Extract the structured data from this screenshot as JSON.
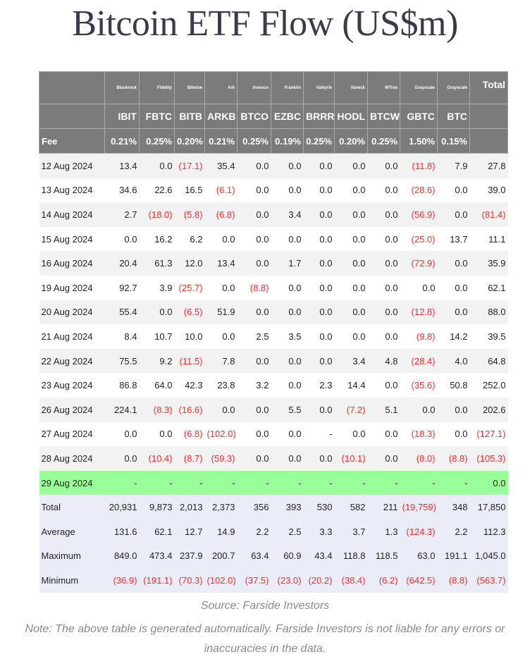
{
  "title": "Bitcoin ETF Flow (US$m)",
  "issuers": [
    "Blackrock",
    "Fidelity",
    "Bitwise",
    "Ark",
    "Invesco",
    "Franklin",
    "Valkyrie",
    "Vaneck",
    "WTree",
    "Grayscale",
    "Grayscale"
  ],
  "total_label": "Total",
  "tickers": [
    "IBIT",
    "FBTC",
    "BITB",
    "ARKB",
    "BTCO",
    "EZBC",
    "BRRR",
    "HODL",
    "BTCW",
    "GBTC",
    "BTC"
  ],
  "fee_label": "Fee",
  "fees": [
    "0.21%",
    "0.25%",
    "0.20%",
    "0.21%",
    "0.25%",
    "0.19%",
    "0.25%",
    "0.20%",
    "0.25%",
    "1.50%",
    "0.15%"
  ],
  "rows": [
    {
      "date": "12 Aug 2024",
      "values": [
        "13.4",
        "0.0",
        "(17.1)",
        "35.4",
        "0.0",
        "0.0",
        "0.0",
        "0.0",
        "0.0",
        "(11.8)",
        "7.9",
        "27.8"
      ]
    },
    {
      "date": "13 Aug 2024",
      "values": [
        "34.6",
        "22.6",
        "16.5",
        "(6.1)",
        "0.0",
        "0.0",
        "0.0",
        "0.0",
        "0.0",
        "(28.6)",
        "0.0",
        "39.0"
      ]
    },
    {
      "date": "14 Aug 2024",
      "values": [
        "2.7",
        "(18.0)",
        "(5.8)",
        "(6.8)",
        "0.0",
        "3.4",
        "0.0",
        "0.0",
        "0.0",
        "(56.9)",
        "0.0",
        "(81.4)"
      ]
    },
    {
      "date": "15 Aug 2024",
      "values": [
        "0.0",
        "16.2",
        "6.2",
        "0.0",
        "0.0",
        "0.0",
        "0.0",
        "0.0",
        "0.0",
        "(25.0)",
        "13.7",
        "11.1"
      ]
    },
    {
      "date": "16 Aug 2024",
      "values": [
        "20.4",
        "61.3",
        "12.0",
        "13.4",
        "0.0",
        "1.7",
        "0.0",
        "0.0",
        "0.0",
        "(72.9)",
        "0.0",
        "35.9"
      ]
    },
    {
      "date": "19 Aug 2024",
      "values": [
        "92.7",
        "3.9",
        "(25.7)",
        "0.0",
        "(8.8)",
        "0.0",
        "0.0",
        "0.0",
        "0.0",
        "0.0",
        "0.0",
        "62.1"
      ]
    },
    {
      "date": "20 Aug 2024",
      "values": [
        "55.4",
        "0.0",
        "(6.5)",
        "51.9",
        "0.0",
        "0.0",
        "0.0",
        "0.0",
        "0.0",
        "(12.8)",
        "0.0",
        "88.0"
      ]
    },
    {
      "date": "21 Aug 2024",
      "values": [
        "8.4",
        "10.7",
        "10.0",
        "0.0",
        "2.5",
        "3.5",
        "0.0",
        "0.0",
        "0.0",
        "(9.8)",
        "14.2",
        "39.5"
      ]
    },
    {
      "date": "22 Aug 2024",
      "values": [
        "75.5",
        "9.2",
        "(11.5)",
        "7.8",
        "0.0",
        "0.0",
        "0.0",
        "3.4",
        "4.8",
        "(28.4)",
        "4.0",
        "64.8"
      ]
    },
    {
      "date": "23 Aug 2024",
      "values": [
        "86.8",
        "64.0",
        "42.3",
        "23.8",
        "3.2",
        "0.0",
        "2.3",
        "14.4",
        "0.0",
        "(35.6)",
        "50.8",
        "252.0"
      ]
    },
    {
      "date": "26 Aug 2024",
      "values": [
        "224.1",
        "(8.3)",
        "(16.6)",
        "0.0",
        "0.0",
        "5.5",
        "0.0",
        "(7.2)",
        "5.1",
        "0.0",
        "0.0",
        "202.6"
      ]
    },
    {
      "date": "27 Aug 2024",
      "values": [
        "0.0",
        "0.0",
        "(6.8)",
        "(102.0)",
        "0.0",
        "0.0",
        "-",
        "0.0",
        "0.0",
        "(18.3)",
        "0.0",
        "(127.1)"
      ]
    },
    {
      "date": "28 Aug 2024",
      "values": [
        "0.0",
        "(10.4)",
        "(8.7)",
        "(59.3)",
        "0.0",
        "0.0",
        "0.0",
        "(10.1)",
        "0.0",
        "(8.0)",
        "(8.8)",
        "(105.3)"
      ]
    },
    {
      "date": "29 Aug 2024",
      "values": [
        "-",
        "-",
        "-",
        "-",
        "-",
        "-",
        "-",
        "-",
        "-",
        "-",
        "-",
        "0.0"
      ],
      "highlight": "#99ff99"
    }
  ],
  "summary": [
    {
      "label": "Total",
      "values": [
        "20,931",
        "9,873",
        "2,013",
        "2,373",
        "356",
        "393",
        "530",
        "582",
        "211",
        "(19,759)",
        "348",
        "17,850"
      ]
    },
    {
      "label": "Average",
      "values": [
        "131.6",
        "62.1",
        "12.7",
        "14.9",
        "2.2",
        "2.5",
        "3.3",
        "3.7",
        "1.3",
        "(124.3)",
        "2.2",
        "112.3"
      ]
    },
    {
      "label": "Maximum",
      "values": [
        "849.0",
        "473.4",
        "237.9",
        "200.7",
        "63.4",
        "60.9",
        "43.4",
        "118.8",
        "118.5",
        "63.0",
        "191.1",
        "1,045.0"
      ]
    },
    {
      "label": "Minimum",
      "values": [
        "(36.9)",
        "(191.1)",
        "(70.3)",
        "(102.0)",
        "(37.5)",
        "(23.0)",
        "(20.2)",
        "(38.4)",
        "(6.2)",
        "(642.5)",
        "(8.8)",
        "(563.7)"
      ]
    }
  ],
  "source": "Source: Farside Investors",
  "note": "Note: The above table is generated automatically. Farside Investors is not liable for any errors or inaccuracies in the data.",
  "colors": {
    "header": "#7b7b7b",
    "negative": "#ff2b2b",
    "summary": "#eaedf8",
    "highlight": "#99ff99"
  }
}
